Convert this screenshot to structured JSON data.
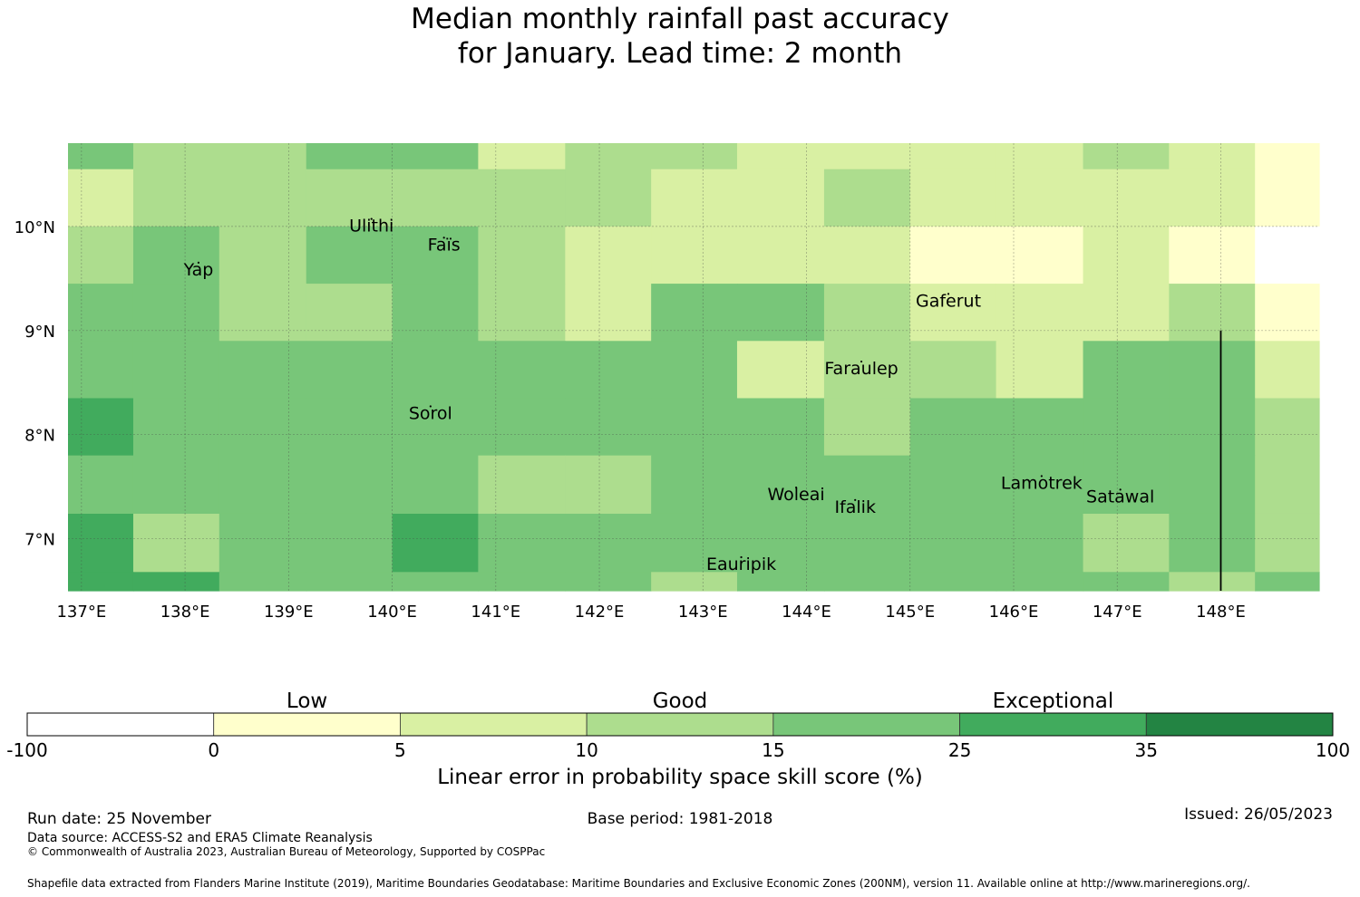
{
  "title": {
    "line1": "Median monthly rainfall past accuracy",
    "line2": "for January. Lead time: 2 month"
  },
  "chart_data": {
    "type": "heatmap",
    "title": "Median monthly rainfall past accuracy for January. Lead time: 2 month",
    "x_ticks": [
      "137°E",
      "138°E",
      "139°E",
      "140°E",
      "141°E",
      "142°E",
      "143°E",
      "144°E",
      "145°E",
      "146°E",
      "147°E",
      "148°E"
    ],
    "y_ticks": [
      "10°N",
      "9°N",
      "8°N",
      "7°N"
    ],
    "xlim": [
      136.87,
      148.95
    ],
    "ylim": [
      6.5,
      10.8
    ],
    "lon_edges": [
      136.87,
      137.5,
      138.33,
      139.17,
      140.0,
      140.83,
      141.67,
      142.5,
      143.33,
      144.17,
      145.0,
      145.83,
      146.67,
      147.5,
      148.33,
      148.95
    ],
    "lat_edges_top_down": [
      10.8,
      10.55,
      10.0,
      9.45,
      8.9,
      8.35,
      7.8,
      7.24,
      6.68,
      6.5
    ],
    "grid_skill_classes": [
      [
        4,
        3,
        3,
        4,
        4,
        2,
        3,
        3,
        2,
        2,
        2,
        2,
        3,
        2,
        1
      ],
      [
        2,
        3,
        3,
        3,
        3,
        3,
        3,
        2,
        2,
        3,
        2,
        2,
        2,
        2,
        1
      ],
      [
        3,
        4,
        3,
        4,
        4,
        3,
        2,
        2,
        2,
        2,
        1,
        1,
        2,
        1,
        0
      ],
      [
        4,
        4,
        3,
        3,
        4,
        3,
        2,
        4,
        4,
        3,
        2,
        2,
        2,
        3,
        1
      ],
      [
        4,
        4,
        4,
        4,
        4,
        4,
        4,
        4,
        2,
        3,
        3,
        2,
        4,
        4,
        2
      ],
      [
        5,
        4,
        4,
        4,
        4,
        4,
        4,
        4,
        4,
        3,
        4,
        4,
        4,
        4,
        3
      ],
      [
        4,
        4,
        4,
        4,
        4,
        3,
        3,
        4,
        4,
        4,
        4,
        4,
        4,
        4,
        3
      ],
      [
        5,
        3,
        4,
        4,
        5,
        4,
        4,
        4,
        4,
        4,
        4,
        4,
        3,
        4,
        3
      ],
      [
        5,
        5,
        4,
        4,
        4,
        4,
        4,
        3,
        4,
        4,
        4,
        4,
        4,
        3,
        4
      ]
    ],
    "places": [
      {
        "name": "Ulithi",
        "lon": 139.8,
        "lat": 9.95
      },
      {
        "name": "Faïs",
        "lon": 140.5,
        "lat": 9.77
      },
      {
        "name": "Yap",
        "lon": 138.13,
        "lat": 9.53
      },
      {
        "name": "Gaferut",
        "lon": 145.37,
        "lat": 9.23
      },
      {
        "name": "Faraulep",
        "lon": 144.53,
        "lat": 8.58
      },
      {
        "name": "Sorol",
        "lon": 140.37,
        "lat": 8.15
      },
      {
        "name": "Woleai",
        "lon": 143.9,
        "lat": 7.37
      },
      {
        "name": "Ifalik",
        "lon": 144.47,
        "lat": 7.25
      },
      {
        "name": "Lamotrek",
        "lon": 146.27,
        "lat": 7.48
      },
      {
        "name": "Satawal",
        "lon": 147.03,
        "lat": 7.35
      },
      {
        "name": "Eauripik",
        "lon": 143.37,
        "lat": 6.7
      }
    ],
    "boundary_line": {
      "lon": 148.0,
      "lat_from": 6.5,
      "lat_to": 9.0
    }
  },
  "colorbar": {
    "category_labels": [
      "Low",
      "Good",
      "Exceptional"
    ],
    "tick_labels": [
      "-100",
      "0",
      "5",
      "10",
      "15",
      "25",
      "35",
      "100"
    ],
    "colors": [
      "#ffffff",
      "#ffffcc",
      "#d9f0a3",
      "#addd8e",
      "#78c679",
      "#41ab5d",
      "#238443"
    ],
    "label": "Linear error in probability space skill score (%)"
  },
  "footer": {
    "run_date": "Run date: 25 November",
    "base_period": "Base period: 1981-2018",
    "issued": "Issued: 26/05/2023",
    "data_source": "Data source: ACCESS-S2 and ERA5 Climate Reanalysis",
    "copyright": "© Commonwealth of Australia 2023, Australian Bureau of Meteorology, Supported by COSPPac",
    "shapefile": "Shapefile data extracted from Flanders Marine Institute (2019), Maritime Boundaries Geodatabase: Maritime Boundaries and Exclusive Economic Zones (200NM), version 11. Available online at http://www.marineregions.org/."
  }
}
